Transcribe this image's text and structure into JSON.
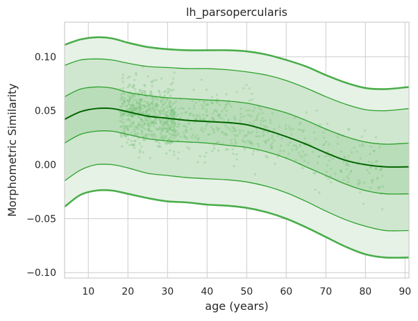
{
  "chart_data": {
    "type": "line",
    "title": "lh_parsopercularis",
    "xlabel": "age (years)",
    "ylabel": "Morphometric Similarity",
    "xlim": [
      4,
      91
    ],
    "ylim": [
      -0.105,
      0.132
    ],
    "grid": true,
    "legend": "none",
    "xticks": [
      10,
      20,
      30,
      40,
      50,
      60,
      70,
      80,
      90
    ],
    "yticks": [
      0.1,
      0.05,
      0.0,
      -0.05,
      -0.1
    ],
    "ytick_labels": [
      "0.10",
      "0.05",
      "0.00",
      "−0.05",
      "−0.10"
    ],
    "x": [
      4,
      8,
      12,
      16,
      20,
      25,
      30,
      35,
      40,
      45,
      50,
      55,
      60,
      65,
      70,
      75,
      80,
      85,
      91
    ],
    "centiles": [
      {
        "line": "outer-upper",
        "values": [
          0.111,
          0.116,
          0.118,
          0.117,
          0.113,
          0.109,
          0.107,
          0.106,
          0.106,
          0.106,
          0.105,
          0.102,
          0.097,
          0.091,
          0.083,
          0.076,
          0.071,
          0.07,
          0.072
        ]
      },
      {
        "line": "upper-2",
        "values": [
          0.092,
          0.097,
          0.098,
          0.097,
          0.094,
          0.091,
          0.09,
          0.089,
          0.089,
          0.088,
          0.086,
          0.083,
          0.078,
          0.071,
          0.063,
          0.056,
          0.051,
          0.05,
          0.052
        ]
      },
      {
        "line": "upper-1",
        "values": [
          0.063,
          0.07,
          0.072,
          0.071,
          0.067,
          0.064,
          0.062,
          0.061,
          0.06,
          0.059,
          0.057,
          0.053,
          0.048,
          0.041,
          0.033,
          0.026,
          0.021,
          0.019,
          0.02
        ]
      },
      {
        "line": "median",
        "values": [
          0.042,
          0.049,
          0.052,
          0.052,
          0.049,
          0.045,
          0.043,
          0.041,
          0.04,
          0.039,
          0.037,
          0.032,
          0.026,
          0.019,
          0.011,
          0.004,
          0.0,
          -0.002,
          -0.002
        ]
      },
      {
        "line": "lower-1",
        "values": [
          0.02,
          0.028,
          0.031,
          0.031,
          0.028,
          0.024,
          0.022,
          0.021,
          0.02,
          0.018,
          0.016,
          0.012,
          0.006,
          -0.002,
          -0.01,
          -0.018,
          -0.024,
          -0.027,
          -0.027
        ]
      },
      {
        "line": "lower-2",
        "values": [
          -0.015,
          -0.005,
          0.0,
          0.0,
          -0.003,
          -0.008,
          -0.01,
          -0.012,
          -0.013,
          -0.014,
          -0.016,
          -0.02,
          -0.026,
          -0.034,
          -0.043,
          -0.051,
          -0.057,
          -0.061,
          -0.061
        ]
      },
      {
        "line": "outer-lower",
        "values": [
          -0.039,
          -0.028,
          -0.024,
          -0.024,
          -0.027,
          -0.031,
          -0.034,
          -0.035,
          -0.037,
          -0.038,
          -0.04,
          -0.044,
          -0.05,
          -0.058,
          -0.067,
          -0.076,
          -0.083,
          -0.086,
          -0.086
        ]
      }
    ],
    "colors": {
      "line": "#2ca02c",
      "median": "#006400",
      "band_outer": "#e6f2e6",
      "band_mid": "#cfe7cf",
      "band_inner": "#b9ddb9",
      "points": "#7fc27f",
      "grid": "#cccccc",
      "spine": "#cccccc"
    }
  }
}
